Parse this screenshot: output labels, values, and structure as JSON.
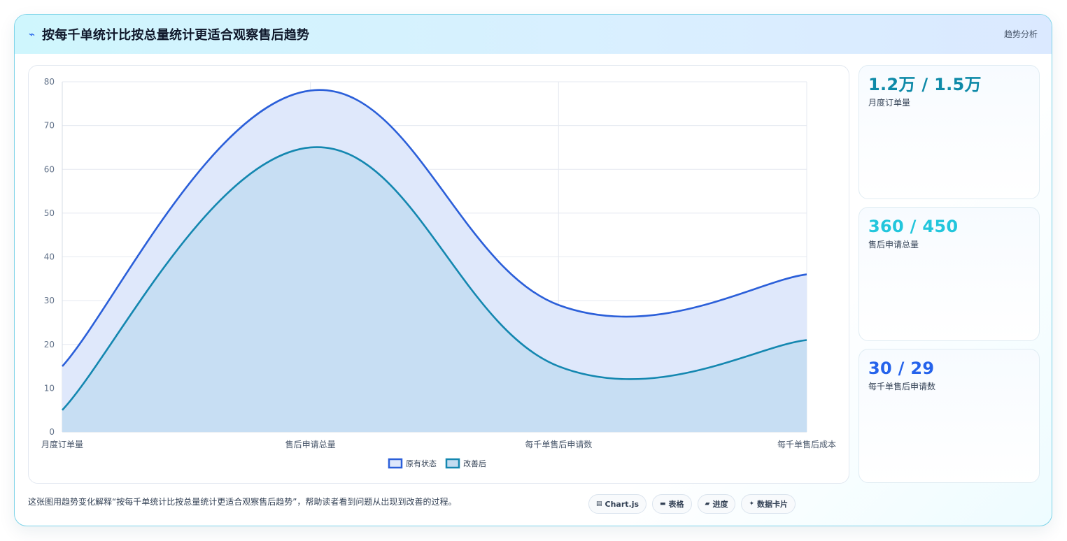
{
  "header": {
    "title": "按每千单统计比按总量统计更适合观察售后趋势",
    "tag": "趋势分析"
  },
  "chart_data": {
    "type": "area",
    "categories": [
      "月度订单量",
      "售后申请总量",
      "每千单售后申请数",
      "每千单售后成本"
    ],
    "series": [
      {
        "name": "原有状态",
        "values": [
          15,
          78,
          29,
          36
        ],
        "color": "#2b5fd9",
        "fill": "#dfe8fb"
      },
      {
        "name": "改善后",
        "values": [
          5,
          65,
          15,
          21
        ],
        "color": "#1487b0",
        "fill": "#c3dcf1"
      }
    ],
    "yticks": [
      "80",
      "70",
      "60",
      "50",
      "40",
      "30",
      "20",
      "10",
      "0"
    ],
    "ylim": [
      0,
      80
    ],
    "grid": true,
    "legend": "bottom"
  },
  "stats": [
    {
      "value": "1.2万 / 1.5万",
      "label": "月度订单量",
      "color": "#0e8aa8"
    },
    {
      "value": "360 / 450",
      "label": "售后申请总量",
      "color": "#22c6dc"
    },
    {
      "value": "30 / 29",
      "label": "每千单售后申请数",
      "color": "#2563eb"
    }
  ],
  "footer": {
    "text": "这张图用趋势变化解释“按每千单统计比按总量统计更适合观察售后趋势”，帮助读者看到问题从出现到改善的过程。",
    "chips": [
      {
        "icon": "chart-icon",
        "label": "Chart.js"
      },
      {
        "icon": "table-icon",
        "label": "表格"
      },
      {
        "icon": "progress-icon",
        "label": "进度"
      },
      {
        "icon": "card-icon",
        "label": "数据卡片"
      }
    ]
  }
}
